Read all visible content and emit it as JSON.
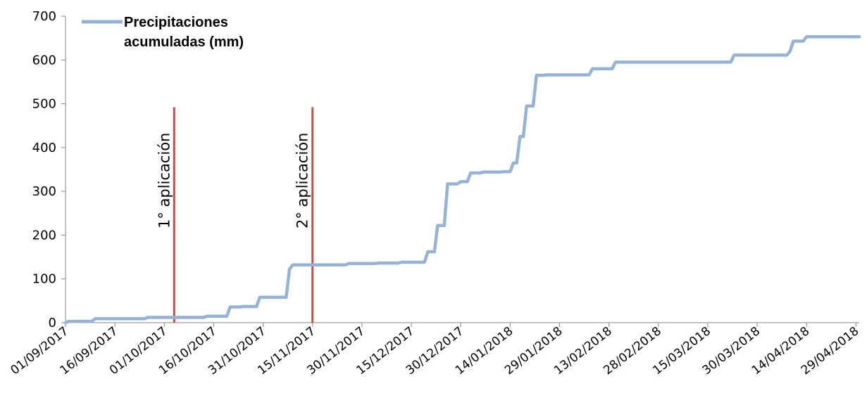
{
  "chart_data": {
    "type": "line",
    "title": "",
    "xlabel": "",
    "ylabel": "",
    "ylim": [
      0,
      700
    ],
    "y_ticks": [
      "0",
      "100",
      "200",
      "300",
      "400",
      "500",
      "600",
      "700"
    ],
    "x_tick_labels": [
      "01/09/2017",
      "16/09/2017",
      "01/10/2017",
      "16/10/2017",
      "31/10/2017",
      "15/11/2017",
      "30/11/2017",
      "15/12/2017",
      "30/12/2017",
      "14/01/2018",
      "29/01/2018",
      "13/02/2018",
      "28/02/2018",
      "15/03/2018",
      "30/03/2018",
      "14/04/2018",
      "29/04/2018"
    ],
    "xlim": [
      "01/09/2017",
      "30/04/2018"
    ],
    "grid": false,
    "legend_position": "top-left",
    "series": [
      {
        "name": "Precipitaciones acumuladas (mm)",
        "color": "#95b3d7",
        "step": true,
        "x": [
          "01/09/2017",
          "02/09/2017",
          "09/09/2017",
          "10/09/2017",
          "25/09/2017",
          "26/09/2017",
          "13/10/2017",
          "14/10/2017",
          "20/10/2017",
          "21/10/2017",
          "24/10/2017",
          "25/10/2017",
          "29/10/2017",
          "30/10/2017",
          "07/11/2017",
          "08/11/2017",
          "09/11/2017",
          "25/11/2017",
          "26/11/2017",
          "04/12/2017",
          "05/12/2017",
          "11/12/2017",
          "12/12/2017",
          "19/12/2017",
          "20/12/2017",
          "22/12/2017",
          "23/12/2017",
          "25/12/2017",
          "26/12/2017",
          "29/12/2017",
          "30/12/2017",
          "01/01/2018",
          "02/01/2018",
          "05/01/2018",
          "06/01/2018",
          "11/01/2018",
          "12/01/2018",
          "14/01/2018",
          "15/01/2018",
          "16/01/2018",
          "17/01/2018",
          "18/01/2018",
          "19/01/2018",
          "21/01/2018",
          "22/01/2018",
          "24/01/2018",
          "25/01/2018",
          "07/02/2018",
          "08/02/2018",
          "14/02/2018",
          "15/02/2018",
          "22/03/2018",
          "23/03/2018",
          "08/04/2018",
          "09/04/2018",
          "10/04/2018",
          "13/04/2018",
          "14/04/2018",
          "30/04/2018"
        ],
        "values": [
          0,
          3,
          3,
          9,
          9,
          12,
          12,
          15,
          15,
          36,
          36,
          37,
          37,
          58,
          58,
          122,
          132,
          132,
          135,
          135,
          136,
          136,
          138,
          138,
          162,
          162,
          222,
          222,
          317,
          317,
          322,
          322,
          342,
          342,
          344,
          344,
          345,
          345,
          365,
          365,
          425,
          425,
          495,
          495,
          565,
          565,
          566,
          566,
          580,
          580,
          595,
          595,
          611,
          611,
          620,
          643,
          643,
          653,
          653
        ]
      }
    ],
    "annotations": [
      {
        "label": "1° aplicación",
        "x": "04/10/2017",
        "y_top": 492,
        "color": "#c0504d"
      },
      {
        "label": "2° aplicación",
        "x": "15/11/2017",
        "y_top": 492,
        "color": "#c0504d"
      }
    ]
  }
}
